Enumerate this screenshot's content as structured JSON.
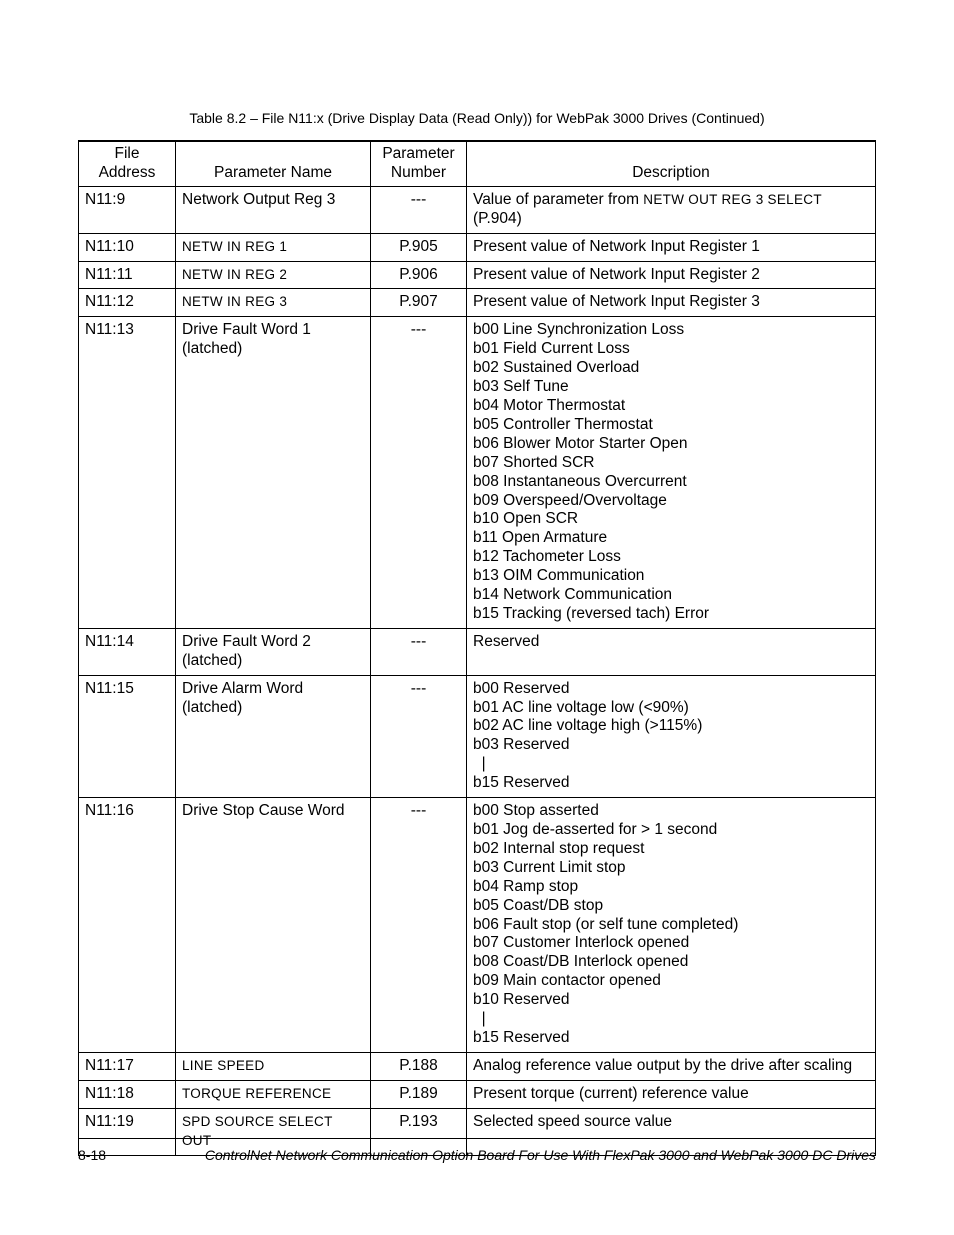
{
  "caption": "Table 8.2 – File N11:x (Drive Display Data (Read Only)) for WebPak 3000 Drives (Continued)",
  "headers": {
    "file_address_l1": "File",
    "file_address_l2": "Address",
    "param_name": "Parameter Name",
    "param_num_l1": "Parameter",
    "param_num_l2": "Number",
    "description": "Description"
  },
  "rows": {
    "r0": {
      "addr": "N11:9",
      "name": "Network Output Reg 3",
      "num": "---",
      "desc_prefix": "Value of parameter from ",
      "desc_smallcaps": "NETW OUT REG 3 SELECT",
      "desc_suffix": " (P.904)"
    },
    "r1": {
      "addr": "N11:10",
      "name": "NETW IN REG 1",
      "num": "P.905",
      "desc": "Present value of Network Input Register 1"
    },
    "r2": {
      "addr": "N11:11",
      "name": "NETW IN REG 2",
      "num": "P.906",
      "desc": "Present value of Network Input Register 2"
    },
    "r3": {
      "addr": "N11:12",
      "name": "NETW IN REG 3",
      "num": "P.907",
      "desc": "Present value of Network Input Register 3"
    },
    "r4": {
      "addr": "N11:13",
      "name_l1": "Drive Fault Word 1",
      "name_l2": "(latched)",
      "num": "---",
      "bits": {
        "b00": "b00  Line Synchronization Loss",
        "b01": "b01  Field Current Loss",
        "b02": "b02  Sustained Overload",
        "b03": "b03  Self Tune",
        "b04": "b04  Motor Thermostat",
        "b05": "b05  Controller Thermostat",
        "b06": "b06  Blower Motor Starter Open",
        "b07": "b07  Shorted SCR",
        "b08": "b08  Instantaneous Overcurrent",
        "b09": "b09  Overspeed/Overvoltage",
        "b10": "b10  Open SCR",
        "b11": "b11  Open Armature",
        "b12": "b12  Tachometer Loss",
        "b13": "b13  OIM Communication",
        "b14": "b14  Network Communication",
        "b15": "b15  Tracking (reversed tach) Error"
      }
    },
    "r5": {
      "addr": "N11:14",
      "name_l1": "Drive Fault Word 2",
      "name_l2": "(latched)",
      "num": "---",
      "desc": "Reserved"
    },
    "r6": {
      "addr": "N11:15",
      "name_l1": "Drive Alarm Word",
      "name_l2": "(latched)",
      "num": "---",
      "bits": {
        "b00": "b00  Reserved",
        "b01": "b01  AC line voltage low (<90%)",
        "b02": "b02  AC line voltage high (>115%)",
        "b03": "b03  Reserved",
        "gap": "  |",
        "b15": "b15  Reserved"
      }
    },
    "r7": {
      "addr": "N11:16",
      "name": "Drive Stop Cause Word",
      "num": "---",
      "bits": {
        "b00": "b00  Stop asserted",
        "b01": "b01  Jog de-asserted for > 1 second",
        "b02": "b02  Internal stop request",
        "b03": "b03  Current Limit stop",
        "b04": "b04  Ramp stop",
        "b05": "b05  Coast/DB stop",
        "b06": "b06  Fault stop (or self tune completed)",
        "b07": "b07  Customer Interlock opened",
        "b08": "b08  Coast/DB Interlock opened",
        "b09": "b09  Main contactor opened",
        "b10": "b10  Reserved",
        "gap": "  |",
        "b15": "b15  Reserved"
      }
    },
    "r8": {
      "addr": "N11:17",
      "name": "LINE SPEED",
      "num": "P.188",
      "desc": "Analog reference value output by the drive after scaling"
    },
    "r9": {
      "addr": "N11:18",
      "name": "TORQUE REFERENCE",
      "num": "P.189",
      "desc": "Present torque (current) reference value"
    },
    "r10": {
      "addr": "N11:19",
      "name": "SPD SOURCE SELECT OUT",
      "num": "P.193",
      "desc": "Selected speed source value"
    }
  },
  "footer": {
    "page": "8-18",
    "title": "ControlNet Network Communication Option Board For Use With FlexPak 3000 and WebPak 3000 DC Drives"
  }
}
